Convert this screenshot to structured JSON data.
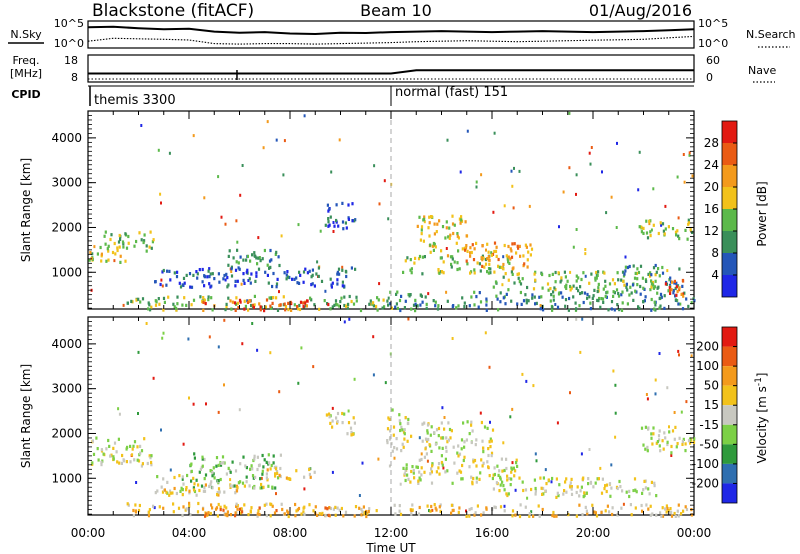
{
  "header": {
    "station": "Blackstone (fitACF)",
    "beam": "Beam 10",
    "date": "01/Aug/2016"
  },
  "noise_panel": {
    "left_label": "N.Sky",
    "right_label": "N.Search",
    "tick_top": "10^5",
    "tick_bottom": "10^0",
    "sky_level": [
      0.78,
      0.8,
      0.74,
      0.7,
      0.72,
      0.6,
      0.55,
      0.58,
      0.52,
      0.5,
      0.55,
      0.54,
      0.58,
      0.6,
      0.62,
      0.6,
      0.58,
      0.6,
      0.62,
      0.6,
      0.58,
      0.6,
      0.62,
      0.66,
      0.7
    ],
    "search_level": [
      0.2,
      0.32,
      0.3,
      0.28,
      0.25,
      0.1,
      0.08,
      0.1,
      0.1,
      0.08,
      0.1,
      0.12,
      0.14,
      0.18,
      0.2,
      0.22,
      0.2,
      0.18,
      0.2,
      0.22,
      0.24,
      0.26,
      0.28,
      0.34,
      0.4
    ]
  },
  "freq_panel": {
    "left_label_1": "Freq.",
    "left_label_2": "[MHz]",
    "right_label": "Nave",
    "left_tick_top": "18",
    "left_tick_bottom": "8",
    "right_tick_top": "60",
    "right_tick_bottom": "0",
    "freq_mhz": [
      10.9,
      10.9,
      10.9,
      10.9,
      10.9,
      10.9,
      10.9,
      10.9,
      10.9,
      10.9,
      10.9,
      10.9,
      10.9,
      12.1,
      12.1,
      12.1,
      12.1,
      12.1,
      12.1,
      12.1,
      12.1,
      12.1,
      12.1,
      12.1,
      12.1
    ]
  },
  "cpid_panel": {
    "label": "CPID",
    "modes": [
      {
        "name": "themis 3300",
        "start_hour": 0
      },
      {
        "name": "normal (fast) 151",
        "start_hour": 12.1
      }
    ]
  },
  "chart_data": [
    {
      "type": "heatmap",
      "title": "",
      "ylabel": "Slant Range [km]",
      "xlabel": "Time UT",
      "x_ticks": [
        "00:00",
        "04:00",
        "08:00",
        "12:00",
        "16:00",
        "20:00",
        "00:00"
      ],
      "y_ticks": [
        "1000",
        "2000",
        "3000",
        "4000"
      ],
      "xlim_hours": [
        0,
        24
      ],
      "ylim_km": [
        180,
        4600
      ],
      "colorbar": {
        "label": "Power [dB]",
        "ticks": [
          "4",
          "8",
          "12",
          "16",
          "20",
          "24",
          "28"
        ],
        "colors": [
          "#1f27e6",
          "#2456b8",
          "#3a8f5a",
          "#5cb94a",
          "#f2c21b",
          "#f39a1c",
          "#ea5b14",
          "#e21a12"
        ]
      },
      "regions": [
        {
          "t0": 0.0,
          "t1": 1.6,
          "r0": 1250,
          "r1": 1650,
          "level": 4
        },
        {
          "t0": 0.6,
          "t1": 2.6,
          "r0": 1500,
          "r1": 1950,
          "level": 3
        },
        {
          "t0": 2.6,
          "t1": 4.0,
          "r0": 700,
          "r1": 1100,
          "level": 1
        },
        {
          "t0": 4.0,
          "t1": 10.6,
          "r0": 700,
          "r1": 1150,
          "level": 1
        },
        {
          "t0": 5.4,
          "t1": 7.6,
          "r0": 1100,
          "r1": 1550,
          "level": 2
        },
        {
          "t0": 1.5,
          "t1": 12.0,
          "r0": 180,
          "r1": 500,
          "level": 3
        },
        {
          "t0": 4.5,
          "t1": 9.5,
          "r0": 180,
          "r1": 420,
          "level": 6
        },
        {
          "t0": 9.3,
          "t1": 10.6,
          "r0": 2000,
          "r1": 2600,
          "level": 1
        },
        {
          "t0": 11.6,
          "t1": 24.0,
          "r0": 180,
          "r1": 600,
          "level": 2
        },
        {
          "t0": 12.4,
          "t1": 16.8,
          "r0": 1000,
          "r1": 1400,
          "level": 3
        },
        {
          "t0": 13.0,
          "t1": 15.0,
          "r0": 1400,
          "r1": 2300,
          "level": 4
        },
        {
          "t0": 14.8,
          "t1": 17.6,
          "r0": 1100,
          "r1": 1700,
          "level": 5
        },
        {
          "t0": 16.0,
          "t1": 22.5,
          "r0": 600,
          "r1": 1050,
          "level": 3
        },
        {
          "t0": 21.2,
          "t1": 23.5,
          "r0": 600,
          "r1": 1200,
          "level": 2
        },
        {
          "t0": 22.8,
          "t1": 24.0,
          "r0": 500,
          "r1": 900,
          "level": 6
        },
        {
          "t0": 21.8,
          "t1": 24.0,
          "r0": 1750,
          "r1": 2200,
          "level": 3
        }
      ]
    },
    {
      "type": "heatmap",
      "title": "",
      "ylabel": "Slant Range [km]",
      "xlabel": "Time UT",
      "x_ticks": [
        "00:00",
        "04:00",
        "08:00",
        "12:00",
        "16:00",
        "20:00",
        "00:00"
      ],
      "y_ticks": [
        "1000",
        "2000",
        "3000",
        "4000"
      ],
      "xlim_hours": [
        0,
        24
      ],
      "ylim_km": [
        180,
        4600
      ],
      "colorbar": {
        "label": "Velocity [m s-1]",
        "ticks": [
          "200",
          "100",
          "50",
          "15",
          "-15",
          "-50",
          "-100",
          "-200"
        ],
        "colors": [
          "#1f27e6",
          "#2f6fb0",
          "#2f9a3c",
          "#7cd046",
          "#c8c8c0",
          "#f2c21b",
          "#f39a1c",
          "#ea5b14",
          "#e21a12"
        ]
      },
      "regions": [
        {
          "t0": 0.0,
          "t1": 2.6,
          "r0": 1300,
          "r1": 1950,
          "level": 4
        },
        {
          "t0": 2.6,
          "t1": 4.2,
          "r0": 700,
          "r1": 1100,
          "level": 4
        },
        {
          "t0": 4.0,
          "t1": 7.6,
          "r0": 800,
          "r1": 1600,
          "level": 3
        },
        {
          "t0": 3.0,
          "t1": 7.0,
          "r0": 650,
          "r1": 900,
          "level": 5
        },
        {
          "t0": 7.0,
          "t1": 9.0,
          "r0": 1000,
          "r1": 1300,
          "level": 5
        },
        {
          "t0": 1.5,
          "t1": 11.5,
          "r0": 180,
          "r1": 480,
          "level": 5
        },
        {
          "t0": 4.5,
          "t1": 9.5,
          "r0": 180,
          "r1": 380,
          "level": 6
        },
        {
          "t0": 9.3,
          "t1": 10.6,
          "r0": 2000,
          "r1": 2500,
          "level": 4
        },
        {
          "t0": 11.8,
          "t1": 12.8,
          "r0": 1600,
          "r1": 2600,
          "level": 4
        },
        {
          "t0": 12.4,
          "t1": 17.0,
          "r0": 900,
          "r1": 1500,
          "level": 4
        },
        {
          "t0": 13.2,
          "t1": 16.0,
          "r0": 1500,
          "r1": 2300,
          "level": 4
        },
        {
          "t0": 16.0,
          "t1": 22.5,
          "r0": 600,
          "r1": 1050,
          "level": 4
        },
        {
          "t0": 12.0,
          "t1": 24.0,
          "r0": 180,
          "r1": 450,
          "level": 5
        },
        {
          "t0": 21.8,
          "t1": 24.0,
          "r0": 1600,
          "r1": 2200,
          "level": 4
        }
      ]
    }
  ]
}
